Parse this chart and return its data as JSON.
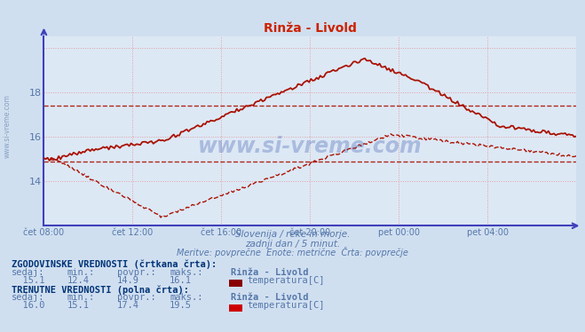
{
  "title": "Rinža - Livold",
  "subtitle1": "Slovenija / reke in morje.",
  "subtitle2": "zadnji dan / 5 minut.",
  "subtitle3": "Meritve: povprečne  Enote: metrične  Črta: povprečje",
  "xlabel_ticks": [
    "čet 08:00",
    "čet 12:00",
    "čet 16:00",
    "čet 20:00",
    "pet 00:00",
    "pet 04:00"
  ],
  "ylim": [
    12.0,
    20.5
  ],
  "xlim": [
    0,
    288
  ],
  "bg_color": "#d0dff0",
  "plot_bg_color": "#dde8f5",
  "grid_color": "#c8d8e8",
  "axis_color": "#4040bb",
  "title_color": "#cc2200",
  "text_color": "#5577aa",
  "label_color": "#5577aa",
  "line_color": "#aa1100",
  "avg_hist": 14.9,
  "avg_curr": 17.4,
  "hist_sedaj": 15.1,
  "hist_min": 12.4,
  "hist_max": 16.1,
  "curr_sedaj": 16.0,
  "curr_min": 15.1,
  "curr_max": 19.5,
  "station": "Rinža - Livold",
  "watermark": "www.si-vreme.com",
  "watermark_color": "#3355aa"
}
